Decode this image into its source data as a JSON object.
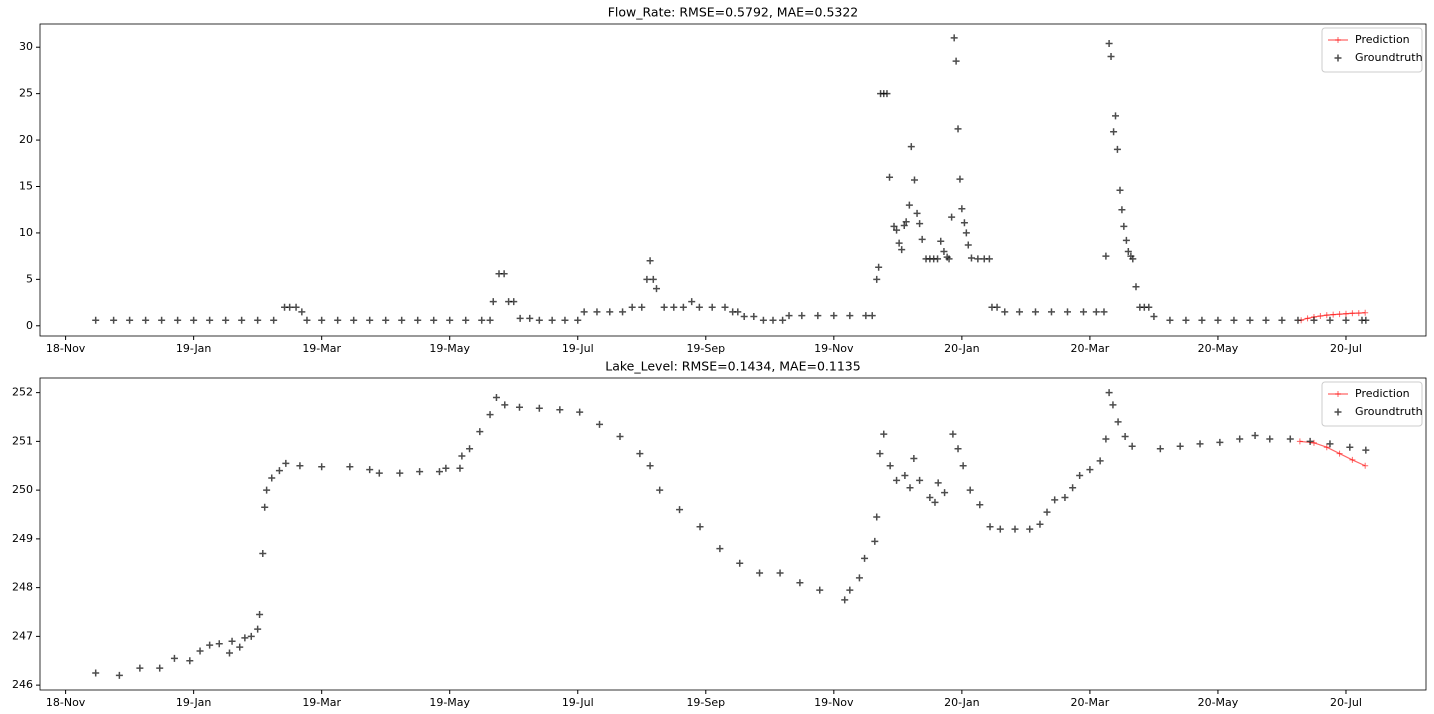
{
  "chart_data": [
    {
      "type": "scatter",
      "title": "Flow_Rate: RMSE=0.5792, MAE=0.5322",
      "xlim": [
        -0.4,
        21.25
      ],
      "xticks": [
        {
          "value": 0,
          "label": "18-Nov"
        },
        {
          "value": 2,
          "label": "19-Jan"
        },
        {
          "value": 4,
          "label": "19-Mar"
        },
        {
          "value": 6,
          "label": "19-May"
        },
        {
          "value": 8,
          "label": "19-Jul"
        },
        {
          "value": 10,
          "label": "19-Sep"
        },
        {
          "value": 12,
          "label": "19-Nov"
        },
        {
          "value": 14,
          "label": "20-Jan"
        },
        {
          "value": 16,
          "label": "20-Mar"
        },
        {
          "value": 18,
          "label": "20-May"
        },
        {
          "value": 20,
          "label": "20-Jul"
        }
      ],
      "ylim": [
        -1.1,
        32.5
      ],
      "yticks": [
        0,
        5,
        10,
        15,
        20,
        25,
        30
      ],
      "legend": "upper right",
      "series": [
        {
          "name": "Prediction",
          "type": "line",
          "color": "#ff0000",
          "x": [
            19.3,
            19.4,
            19.5,
            19.6,
            19.7,
            19.8,
            19.9,
            20.0,
            20.1,
            20.2,
            20.3
          ],
          "values": [
            0.6,
            0.8,
            0.95,
            1.05,
            1.15,
            1.2,
            1.25,
            1.3,
            1.35,
            1.37,
            1.4
          ]
        },
        {
          "name": "Groundtruth",
          "type": "scatter",
          "color": "#000000",
          "x": [
            0.47,
            0.75,
            1.0,
            1.25,
            1.5,
            1.75,
            2.0,
            2.25,
            2.5,
            2.75,
            3.0,
            3.25,
            3.42,
            3.5,
            3.6,
            3.69,
            3.77,
            4.0,
            4.25,
            4.5,
            4.75,
            5.0,
            5.25,
            5.5,
            5.75,
            6.0,
            6.25,
            6.5,
            6.63,
            6.68,
            6.77,
            6.85,
            6.92,
            7.0,
            7.1,
            7.25,
            7.4,
            7.6,
            7.8,
            8.0,
            8.1,
            8.3,
            8.5,
            8.7,
            8.85,
            9.0,
            9.08,
            9.13,
            9.18,
            9.23,
            9.35,
            9.5,
            9.65,
            9.78,
            9.9,
            10.1,
            10.3,
            10.42,
            10.5,
            10.6,
            10.75,
            10.9,
            11.05,
            11.2,
            11.3,
            11.5,
            11.75,
            12.0,
            12.25,
            12.5,
            12.6,
            12.67,
            12.7,
            12.73,
            12.78,
            12.83,
            12.87,
            12.94,
            12.98,
            13.02,
            13.06,
            13.1,
            13.13,
            13.18,
            13.21,
            13.26,
            13.3,
            13.34,
            13.38,
            13.44,
            13.5,
            13.56,
            13.62,
            13.67,
            13.72,
            13.77,
            13.8,
            13.84,
            13.88,
            13.91,
            13.94,
            13.97,
            14.0,
            14.04,
            14.07,
            14.1,
            14.15,
            14.25,
            14.35,
            14.43,
            14.47,
            14.55,
            14.67,
            14.9,
            15.15,
            15.4,
            15.65,
            15.9,
            16.1,
            16.22,
            16.25,
            16.3,
            16.33,
            16.37,
            16.4,
            16.43,
            16.47,
            16.5,
            16.53,
            16.57,
            16.6,
            16.64,
            16.67,
            16.72,
            16.78,
            16.85,
            16.92,
            17.0,
            17.25,
            17.5,
            17.75,
            18.0,
            18.25,
            18.5,
            18.75,
            19.0,
            19.25,
            19.5,
            19.75,
            20.0,
            20.25,
            20.31
          ],
          "values": [
            0.6,
            0.6,
            0.6,
            0.6,
            0.6,
            0.6,
            0.6,
            0.6,
            0.6,
            0.6,
            0.6,
            0.6,
            2.0,
            2.0,
            2.0,
            1.5,
            0.6,
            0.6,
            0.6,
            0.6,
            0.6,
            0.6,
            0.6,
            0.6,
            0.6,
            0.6,
            0.6,
            0.6,
            0.6,
            2.6,
            5.6,
            5.6,
            2.6,
            2.6,
            0.8,
            0.8,
            0.6,
            0.6,
            0.6,
            0.6,
            1.5,
            1.5,
            1.5,
            1.5,
            2.0,
            2.0,
            5.0,
            7.0,
            5.0,
            4.0,
            2.0,
            2.0,
            2.0,
            2.6,
            2.0,
            2.0,
            2.0,
            1.5,
            1.5,
            1.0,
            1.0,
            0.6,
            0.6,
            0.6,
            1.1,
            1.1,
            1.1,
            1.1,
            1.1,
            1.1,
            1.1,
            5.0,
            6.3,
            25,
            25,
            25,
            16,
            10.7,
            10.3,
            8.9,
            8.2,
            10.8,
            11.2,
            13.0,
            19.3,
            15.7,
            12.1,
            11.0,
            9.3,
            7.2,
            7.2,
            7.2,
            7.2,
            9.1,
            8.0,
            7.4,
            7.2,
            11.7,
            31,
            28.5,
            21.2,
            15.8,
            12.6,
            11.1,
            10.0,
            8.7,
            7.3,
            7.2,
            7.2,
            7.2,
            2.0,
            2.0,
            1.5,
            1.5,
            1.5,
            1.5,
            1.5,
            1.5,
            1.5,
            1.5,
            7.5,
            30.4,
            29.0,
            20.9,
            22.6,
            19.0,
            14.6,
            12.5,
            10.7,
            9.2,
            8.0,
            7.5,
            7.2,
            4.2,
            2.0,
            2.0,
            2.0,
            1.0,
            0.6,
            0.6,
            0.6,
            0.6,
            0.6,
            0.6,
            0.6,
            0.6,
            0.6,
            0.6,
            0.6,
            0.6,
            0.6,
            0.6
          ]
        }
      ]
    },
    {
      "type": "scatter",
      "title": "Lake_Level: RMSE=0.1434, MAE=0.1135",
      "xlim": [
        -0.4,
        21.25
      ],
      "xticks": [
        {
          "value": 0,
          "label": "18-Nov"
        },
        {
          "value": 2,
          "label": "19-Jan"
        },
        {
          "value": 4,
          "label": "19-Mar"
        },
        {
          "value": 6,
          "label": "19-May"
        },
        {
          "value": 8,
          "label": "19-Jul"
        },
        {
          "value": 10,
          "label": "19-Sep"
        },
        {
          "value": 12,
          "label": "19-Nov"
        },
        {
          "value": 14,
          "label": "20-Jan"
        },
        {
          "value": 16,
          "label": "20-Mar"
        },
        {
          "value": 18,
          "label": "20-May"
        },
        {
          "value": 20,
          "label": "20-Jul"
        }
      ],
      "ylim": [
        245.9,
        252.3
      ],
      "yticks": [
        246,
        247,
        248,
        249,
        250,
        251,
        252
      ],
      "legend": "upper right",
      "series": [
        {
          "name": "Prediction",
          "type": "line",
          "color": "#ff0000",
          "x": [
            19.28,
            19.5,
            19.7,
            19.9,
            20.1,
            20.3
          ],
          "values": [
            251.0,
            250.97,
            250.88,
            250.75,
            250.62,
            250.5
          ]
        },
        {
          "name": "Groundtruth",
          "type": "scatter",
          "color": "#000000",
          "x": [
            0.47,
            0.84,
            1.16,
            1.47,
            1.7,
            1.94,
            2.1,
            2.25,
            2.4,
            2.56,
            2.6,
            2.72,
            2.8,
            2.9,
            3.0,
            3.03,
            3.08,
            3.11,
            3.14,
            3.22,
            3.34,
            3.44,
            3.66,
            4.0,
            4.44,
            4.75,
            4.9,
            5.22,
            5.53,
            5.84,
            5.94,
            6.16,
            6.19,
            6.31,
            6.47,
            6.63,
            6.73,
            6.86,
            7.09,
            7.4,
            7.72,
            8.03,
            8.34,
            8.66,
            8.97,
            9.13,
            9.28,
            9.59,
            9.91,
            10.22,
            10.53,
            10.84,
            11.16,
            11.47,
            11.78,
            12.17,
            12.25,
            12.4,
            12.48,
            12.64,
            12.67,
            12.72,
            12.78,
            12.88,
            12.98,
            13.11,
            13.19,
            13.25,
            13.34,
            13.5,
            13.58,
            13.63,
            13.73,
            13.86,
            13.94,
            14.02,
            14.13,
            14.28,
            14.44,
            14.6,
            14.83,
            15.06,
            15.22,
            15.33,
            15.45,
            15.61,
            15.73,
            15.84,
            16.0,
            16.16,
            16.25,
            16.3,
            16.36,
            16.44,
            16.55,
            16.66,
            17.1,
            17.41,
            17.72,
            18.03,
            18.34,
            18.58,
            18.81,
            19.13,
            19.44,
            19.75,
            20.06,
            20.31
          ],
          "values": [
            246.25,
            246.2,
            246.35,
            246.35,
            246.55,
            246.5,
            246.7,
            246.82,
            246.85,
            246.66,
            246.9,
            246.78,
            246.97,
            247.0,
            247.15,
            247.45,
            248.7,
            249.65,
            250.0,
            250.25,
            250.4,
            250.55,
            250.5,
            250.48,
            250.48,
            250.42,
            250.35,
            250.35,
            250.38,
            250.38,
            250.45,
            250.45,
            250.7,
            250.85,
            251.2,
            251.55,
            251.9,
            251.75,
            251.7,
            251.68,
            251.65,
            251.6,
            251.35,
            251.1,
            250.75,
            250.5,
            250.0,
            249.6,
            249.25,
            248.8,
            248.5,
            248.3,
            248.3,
            248.1,
            247.95,
            247.75,
            247.95,
            248.2,
            248.6,
            248.95,
            249.45,
            250.75,
            251.15,
            250.5,
            250.2,
            250.3,
            250.05,
            250.65,
            250.2,
            249.85,
            249.75,
            250.15,
            249.95,
            251.15,
            250.85,
            250.5,
            250.0,
            249.7,
            249.25,
            249.2,
            249.2,
            249.2,
            249.3,
            249.55,
            249.8,
            249.85,
            250.05,
            250.3,
            250.42,
            250.6,
            251.05,
            252.0,
            251.75,
            251.4,
            251.1,
            250.9,
            250.85,
            250.9,
            250.95,
            250.98,
            251.05,
            251.12,
            251.05,
            251.05,
            251.0,
            250.95,
            250.88,
            250.82
          ]
        }
      ]
    }
  ]
}
